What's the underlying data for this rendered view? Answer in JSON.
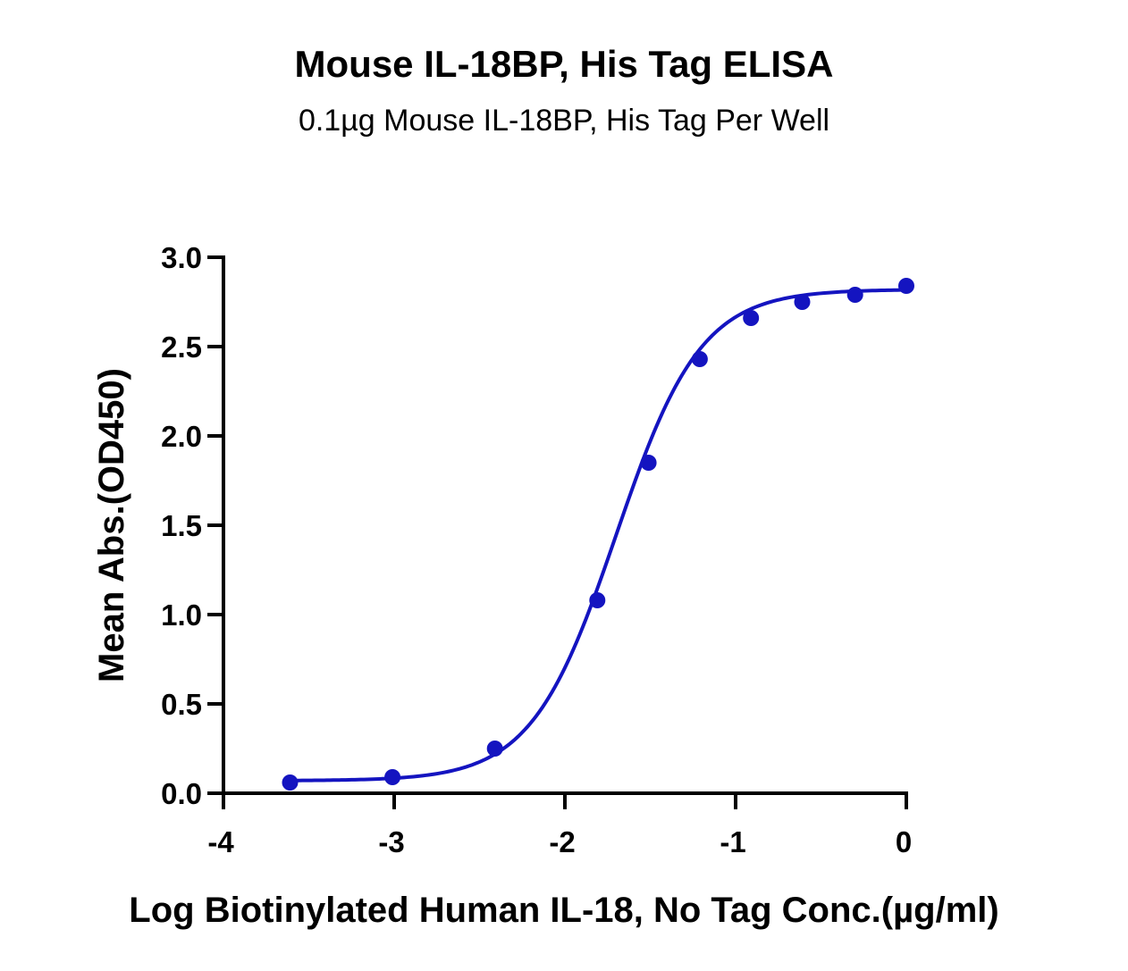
{
  "chart_data": {
    "type": "scatter",
    "title": "Mouse IL-18BP, His Tag ELISA",
    "subtitle": "0.1µg Mouse IL-18BP, His Tag Per Well",
    "xlabel": "Log  Biotinylated Human IL-18, No Tag Conc.(µg/ml)",
    "ylabel": "Mean Abs.(OD450)",
    "xlim": [
      -4,
      0
    ],
    "ylim": [
      0,
      3.0
    ],
    "x_ticks": [
      "-4",
      "-3",
      "-2",
      "-1",
      "0"
    ],
    "y_ticks": [
      "0.0",
      "0.5",
      "1.0",
      "1.5",
      "2.0",
      "2.5",
      "3.0"
    ],
    "series": [
      {
        "x": [
          -3.61,
          -3.01,
          -2.41,
          -1.81,
          -1.51,
          -1.21,
          -0.91,
          -0.61,
          -0.3,
          0.0
        ],
        "y": [
          0.06,
          0.09,
          0.25,
          1.08,
          1.85,
          2.43,
          2.66,
          2.75,
          2.79,
          2.84
        ],
        "fit": "4PL",
        "fit_params": {
          "bottom": 0.07,
          "top": 2.82,
          "logEC50": -1.7,
          "hill": 1.75
        }
      }
    ],
    "colors": {
      "series": "#1414c0",
      "axis": "#000000"
    },
    "grid": false
  }
}
